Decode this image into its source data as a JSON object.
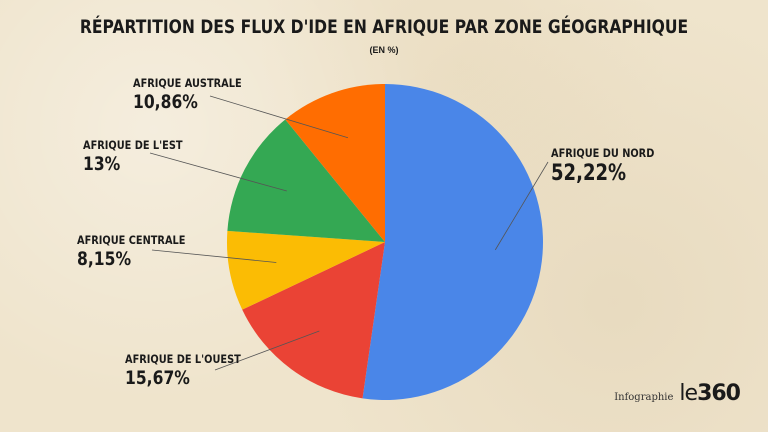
{
  "chart_data": {
    "type": "pie",
    "title": "RÉPARTITION DES FLUX D'IDE EN AFRIQUE PAR ZONE GÉOGRAPHIQUE",
    "subtitle": "(EN %)",
    "slices": [
      {
        "name": "AFRIQUE DU NORD",
        "value": 52.22,
        "label": "52,22%",
        "color": "#4a86e8"
      },
      {
        "name": "AFRIQUE DE L'OUEST",
        "value": 15.67,
        "label": "15,67%",
        "color": "#ea4335"
      },
      {
        "name": "AFRIQUE CENTRALE",
        "value": 8.15,
        "label": "8,15%",
        "color": "#fbbc04"
      },
      {
        "name": "AFRIQUE DE L'EST",
        "value": 13,
        "label": "13%",
        "color": "#34a853"
      },
      {
        "name": "AFRIQUE AUSTRALE",
        "value": 10.86,
        "label": "10,86%",
        "color": "#ff6d01"
      }
    ]
  },
  "credit": {
    "word": "Infographie",
    "logo_le": "le",
    "logo_num": "360"
  }
}
